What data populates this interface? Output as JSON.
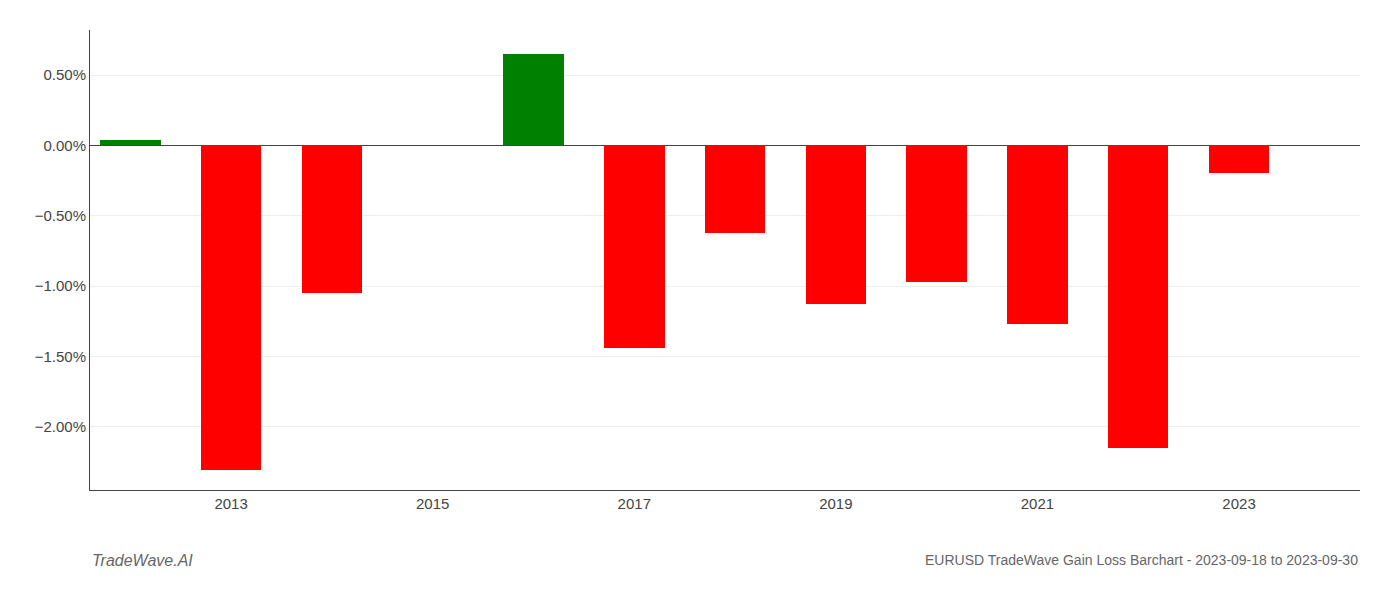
{
  "chart_data": {
    "type": "bar",
    "title": "EURUSD TradeWave Gain Loss Barchart - 2023-09-18 to 2023-09-30",
    "annotations": [
      "TradeWave.AI"
    ],
    "x": [
      2012,
      2013,
      2014,
      2016,
      2017,
      2018,
      2019,
      2020,
      2021,
      2022,
      2023
    ],
    "values": [
      0.038,
      -2.305,
      -1.05,
      0.648,
      -1.44,
      -0.62,
      -1.13,
      -0.97,
      -1.27,
      -2.15,
      -0.2
    ],
    "colors": [
      "#008000",
      "#ff0000",
      "#ff0000",
      "#008000",
      "#ff0000",
      "#ff0000",
      "#ff0000",
      "#ff0000",
      "#ff0000",
      "#ff0000",
      "#ff0000"
    ],
    "xlim": [
      2011.6,
      2024.2
    ],
    "xticks": [
      2013,
      2015,
      2017,
      2019,
      2021,
      2023
    ],
    "ylim": [
      -2.45,
      0.82
    ],
    "yticks": [
      {
        "value": -2.0,
        "label": "−2.00%"
      },
      {
        "value": -1.5,
        "label": "−1.50%"
      },
      {
        "value": -1.0,
        "label": "−1.00%"
      },
      {
        "value": -0.5,
        "label": "−0.50%"
      },
      {
        "value": 0.0,
        "label": "0.00%"
      },
      {
        "value": 0.5,
        "label": "0.50%"
      }
    ],
    "grid": true
  }
}
